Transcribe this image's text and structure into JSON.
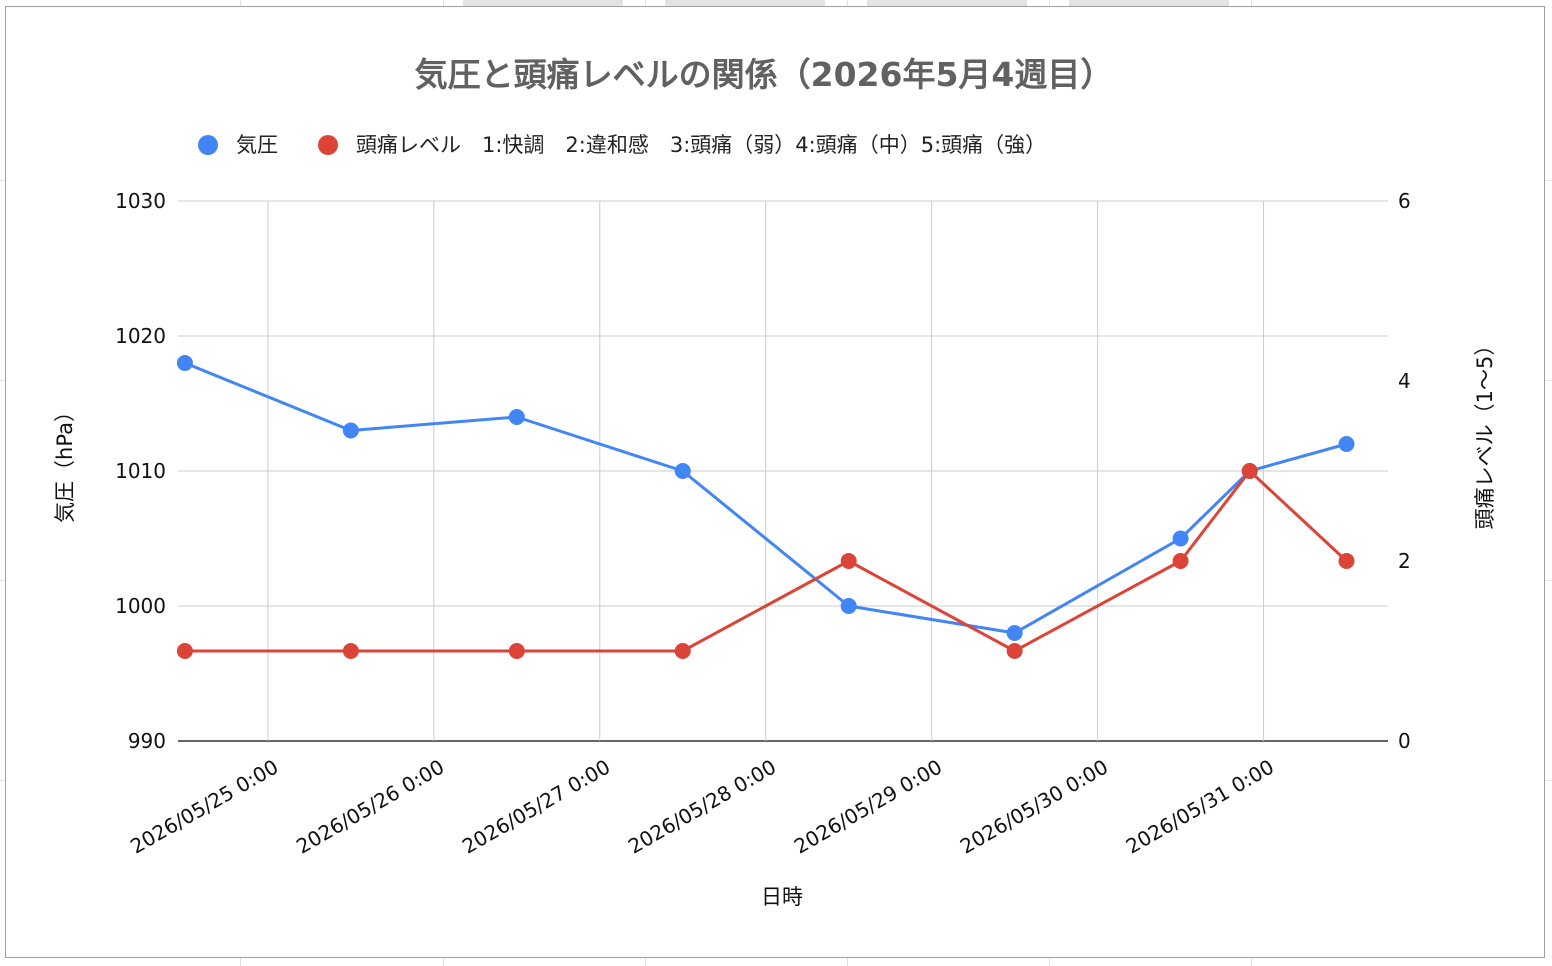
{
  "chart_data": {
    "type": "line",
    "title": "気圧と頭痛レベルの関係（2026年5月4週目）",
    "xlabel": "日時",
    "ylabel_left": "気圧（hPa）",
    "ylabel_right": "頭痛レベル（1〜5）",
    "x_ticks": [
      "2026/05/25 0:00",
      "2026/05/26 0:00",
      "2026/05/27 0:00",
      "2026/05/28 0:00",
      "2026/05/29 0:00",
      "2026/05/30 0:00",
      "2026/05/31 0:00"
    ],
    "y_left_ticks": [
      "1030",
      "1020",
      "1010",
      "1000",
      "990"
    ],
    "y_right_ticks": [
      "6",
      "4",
      "2",
      "0"
    ],
    "y_left_range": [
      990,
      1030
    ],
    "y_right_range": [
      0,
      6
    ],
    "x_range": [
      "2026/05/24 11:00",
      "2026/05/31 18:00"
    ],
    "grid": true,
    "legend_position": "top",
    "series": [
      {
        "name": "気圧",
        "axis": "left",
        "color": "#4285f4",
        "points": [
          {
            "x": "2026/05/24 12:00",
            "y": 1018
          },
          {
            "x": "2026/05/25 12:00",
            "y": 1013
          },
          {
            "x": "2026/05/26 12:00",
            "y": 1014
          },
          {
            "x": "2026/05/27 12:00",
            "y": 1010
          },
          {
            "x": "2026/05/28 12:00",
            "y": 1000
          },
          {
            "x": "2026/05/29 12:00",
            "y": 998
          },
          {
            "x": "2026/05/30 12:00",
            "y": 1005
          },
          {
            "x": "2026/05/30 22:00",
            "y": 1010
          },
          {
            "x": "2026/05/31 12:00",
            "y": 1012
          }
        ]
      },
      {
        "name": "頭痛レベル　1:快調　2:違和感　3:頭痛（弱）4:頭痛（中）5:頭痛（強）",
        "axis": "right",
        "color": "#db4437",
        "points": [
          {
            "x": "2026/05/24 12:00",
            "y": 1
          },
          {
            "x": "2026/05/25 12:00",
            "y": 1
          },
          {
            "x": "2026/05/26 12:00",
            "y": 1
          },
          {
            "x": "2026/05/27 12:00",
            "y": 1
          },
          {
            "x": "2026/05/28 12:00",
            "y": 2
          },
          {
            "x": "2026/05/29 12:00",
            "y": 1
          },
          {
            "x": "2026/05/30 12:00",
            "y": 2
          },
          {
            "x": "2026/05/30 22:00",
            "y": 3
          },
          {
            "x": "2026/05/31 12:00",
            "y": 2
          }
        ]
      }
    ]
  }
}
